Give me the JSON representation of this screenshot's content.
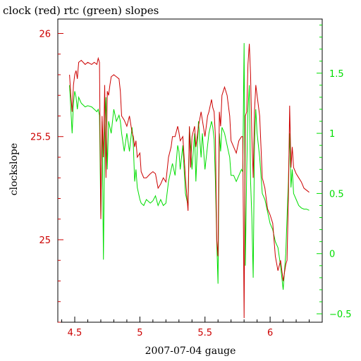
{
  "chart_data": {
    "type": "line",
    "title": "clock (red) rtc (green) slopes",
    "xlabel": "2007-07-04 gauge",
    "ylabel": "clockslope",
    "xlim": [
      4.37,
      6.4
    ],
    "ylim": [
      24.6,
      26.07
    ],
    "y2lim": [
      -0.57,
      1.95
    ],
    "x_ticks": [
      4.5,
      5,
      5.5,
      6
    ],
    "x_tick_labels": [
      "4.5",
      "5",
      "5.5",
      "6"
    ],
    "y_ticks": [
      25,
      25.5,
      26
    ],
    "y_tick_labels": [
      "25",
      "25.5",
      "26"
    ],
    "y2_ticks": [
      -0.5,
      0,
      0.5,
      1,
      1.5
    ],
    "y2_tick_labels": [
      "−0.5",
      "0",
      "0.5",
      "1",
      "1.5"
    ],
    "colors": {
      "x_axis": "#000000",
      "left_axis": "#cc0000",
      "right_axis": "#00dd00"
    },
    "series": [
      {
        "name": "clock",
        "axis": "left",
        "color": "#cc0000",
        "x": [
          4.46,
          4.47,
          4.48,
          4.49,
          4.5,
          4.51,
          4.52,
          4.53,
          4.55,
          4.58,
          4.6,
          4.63,
          4.65,
          4.67,
          4.68,
          4.69,
          4.7,
          4.71,
          4.72,
          4.73,
          4.74,
          4.75,
          4.76,
          4.77,
          4.78,
          4.8,
          4.82,
          4.84,
          4.85,
          4.86,
          4.88,
          4.9,
          4.92,
          4.94,
          4.95,
          4.96,
          4.97,
          4.98,
          5.0,
          5.01,
          5.03,
          5.05,
          5.08,
          5.1,
          5.12,
          5.14,
          5.16,
          5.18,
          5.2,
          5.22,
          5.24,
          5.25,
          5.27,
          5.29,
          5.3,
          5.31,
          5.33,
          5.35,
          5.37,
          5.38,
          5.39,
          5.4,
          5.42,
          5.43,
          5.45,
          5.47,
          5.48,
          5.5,
          5.52,
          5.53,
          5.55,
          5.56,
          5.57,
          5.58,
          5.59,
          5.6,
          5.61,
          5.62,
          5.63,
          5.65,
          5.67,
          5.69,
          5.7,
          5.72,
          5.74,
          5.76,
          5.78,
          5.79,
          5.8,
          5.81,
          5.82,
          5.83,
          5.84,
          5.85,
          5.86,
          5.87,
          5.88,
          5.89,
          5.9,
          5.92,
          5.94,
          5.96,
          5.98,
          6.0,
          6.02,
          6.04,
          6.06,
          6.08,
          6.1,
          6.12,
          6.13,
          6.14,
          6.15,
          6.16,
          6.17,
          6.18,
          6.2,
          6.22,
          6.24,
          6.26,
          6.28,
          6.3
        ],
        "y": [
          25.8,
          25.7,
          25.62,
          25.75,
          25.8,
          25.82,
          25.78,
          25.86,
          25.87,
          25.85,
          25.86,
          25.85,
          25.86,
          25.85,
          25.88,
          25.86,
          25.1,
          25.6,
          25.4,
          25.75,
          25.3,
          25.72,
          25.7,
          25.75,
          25.79,
          25.8,
          25.79,
          25.78,
          25.72,
          25.6,
          25.58,
          25.55,
          25.6,
          25.52,
          25.5,
          25.45,
          25.48,
          25.4,
          25.42,
          25.33,
          25.3,
          25.3,
          25.32,
          25.33,
          25.32,
          25.25,
          25.27,
          25.3,
          25.28,
          25.4,
          25.45,
          25.5,
          25.5,
          25.55,
          25.52,
          25.48,
          25.5,
          25.3,
          25.14,
          25.55,
          25.35,
          25.5,
          25.55,
          25.45,
          25.55,
          25.62,
          25.58,
          25.5,
          25.6,
          25.62,
          25.68,
          25.64,
          25.62,
          25.5,
          25.0,
          24.92,
          25.62,
          25.55,
          25.7,
          25.74,
          25.7,
          25.6,
          25.48,
          25.45,
          25.42,
          25.48,
          25.5,
          25.5,
          24.62,
          25.6,
          25.62,
          25.85,
          25.95,
          25.8,
          25.5,
          25.3,
          25.62,
          25.75,
          25.7,
          25.6,
          25.3,
          25.25,
          25.15,
          25.12,
          25.08,
          24.92,
          24.85,
          24.9,
          24.8,
          24.88,
          24.9,
          25.2,
          25.65,
          25.35,
          25.45,
          25.35,
          25.32,
          25.3,
          25.28,
          25.25,
          25.24,
          25.23
        ]
      },
      {
        "name": "rtc",
        "axis": "right",
        "color": "#00dd00",
        "x": [
          4.46,
          4.47,
          4.48,
          4.49,
          4.5,
          4.51,
          4.52,
          4.53,
          4.55,
          4.58,
          4.6,
          4.63,
          4.65,
          4.67,
          4.68,
          4.69,
          4.7,
          4.71,
          4.72,
          4.73,
          4.74,
          4.75,
          4.76,
          4.77,
          4.78,
          4.8,
          4.82,
          4.84,
          4.85,
          4.86,
          4.88,
          4.9,
          4.92,
          4.94,
          4.95,
          4.96,
          4.97,
          4.98,
          5.0,
          5.01,
          5.03,
          5.05,
          5.08,
          5.1,
          5.12,
          5.14,
          5.16,
          5.18,
          5.2,
          5.22,
          5.24,
          5.25,
          5.27,
          5.29,
          5.3,
          5.31,
          5.33,
          5.35,
          5.37,
          5.38,
          5.39,
          5.4,
          5.42,
          5.43,
          5.45,
          5.47,
          5.48,
          5.5,
          5.52,
          5.53,
          5.55,
          5.56,
          5.57,
          5.58,
          5.59,
          5.6,
          5.61,
          5.62,
          5.63,
          5.65,
          5.67,
          5.69,
          5.7,
          5.72,
          5.74,
          5.76,
          5.78,
          5.79,
          5.8,
          5.81,
          5.82,
          5.83,
          5.84,
          5.85,
          5.86,
          5.87,
          5.88,
          5.89,
          5.9,
          5.92,
          5.94,
          5.96,
          5.98,
          6.0,
          6.02,
          6.04,
          6.06,
          6.08,
          6.1,
          6.12,
          6.13,
          6.14,
          6.15,
          6.16,
          6.17,
          6.18,
          6.2,
          6.22,
          6.24,
          6.26,
          6.28,
          6.3
        ],
        "y": [
          1.4,
          1.2,
          1.0,
          1.25,
          1.35,
          1.3,
          1.2,
          1.3,
          1.25,
          1.22,
          1.23,
          1.22,
          1.2,
          1.18,
          1.2,
          1.15,
          0.3,
          1.1,
          -0.05,
          1.0,
          1.3,
          0.7,
          1.1,
          1.05,
          1.0,
          1.2,
          1.1,
          1.15,
          1.1,
          1.0,
          0.85,
          1.0,
          0.85,
          1.05,
          0.9,
          0.6,
          0.7,
          0.55,
          0.45,
          0.42,
          0.4,
          0.45,
          0.42,
          0.44,
          0.48,
          0.4,
          0.45,
          0.4,
          0.42,
          0.6,
          0.7,
          0.75,
          0.65,
          0.9,
          0.85,
          0.7,
          0.9,
          0.5,
          0.4,
          1.05,
          0.9,
          0.7,
          1.0,
          0.6,
          1.1,
          0.8,
          1.0,
          0.7,
          0.9,
          1.0,
          1.1,
          1.05,
          0.95,
          0.6,
          0.1,
          -0.25,
          1.0,
          0.85,
          1.05,
          1.0,
          0.9,
          0.8,
          0.65,
          0.65,
          0.6,
          0.65,
          0.7,
          0.68,
          1.75,
          -0.1,
          0.7,
          1.2,
          1.4,
          0.6,
          0.3,
          -0.2,
          0.9,
          1.2,
          1.0,
          0.8,
          0.5,
          0.45,
          0.35,
          0.25,
          0.2,
          0.1,
          0.05,
          -0.1,
          -0.3,
          0.0,
          0.3,
          0.6,
          1.0,
          0.55,
          0.7,
          0.5,
          0.45,
          0.4,
          0.38,
          0.37,
          0.37,
          0.36
        ]
      }
    ]
  }
}
